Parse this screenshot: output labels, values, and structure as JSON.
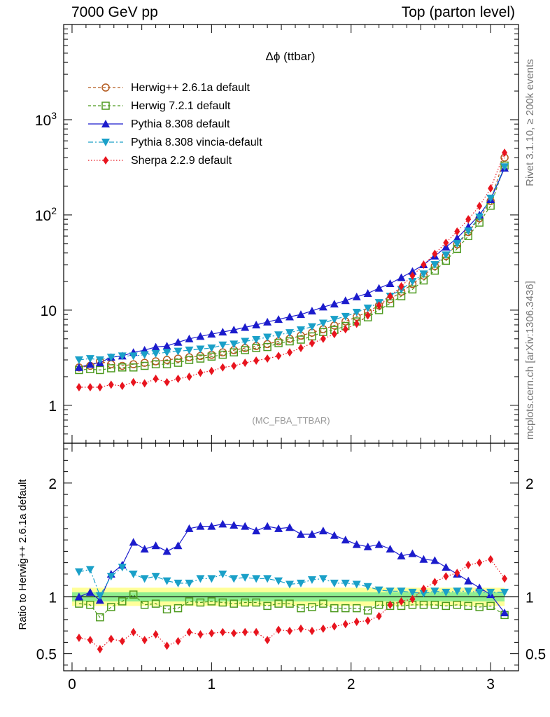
{
  "header": {
    "left": "7000 GeV pp",
    "right": "Top (parton level)"
  },
  "side": {
    "rivet": "Rivet 3.1.10, ≥ 200k events",
    "mcplots": "mcplots.cern.ch [arXiv:1306.3436]"
  },
  "chart_data": [
    {
      "type": "line",
      "title": "Δϕ (ttbar)",
      "annotation": "(MC_FBA_TTBAR)",
      "yscale": "log",
      "xlim": [
        -0.06,
        3.2
      ],
      "ylim": [
        0.4,
        10000
      ],
      "ytick_values": [
        1,
        10,
        100,
        1000
      ],
      "ytick_labels": [
        "1",
        "10",
        "10^2",
        "10^3"
      ],
      "xticks": [
        0,
        1,
        2,
        3
      ],
      "legend_position": "top-left",
      "x": [
        0.05,
        0.13,
        0.2,
        0.28,
        0.36,
        0.44,
        0.52,
        0.6,
        0.68,
        0.76,
        0.84,
        0.92,
        1.0,
        1.08,
        1.16,
        1.24,
        1.32,
        1.4,
        1.48,
        1.56,
        1.64,
        1.72,
        1.8,
        1.88,
        1.96,
        2.04,
        2.12,
        2.2,
        2.28,
        2.36,
        2.44,
        2.52,
        2.6,
        2.68,
        2.76,
        2.84,
        2.92,
        3.0,
        3.1
      ],
      "series": [
        {
          "name": "Herwig++ 2.6.1a default",
          "color": "#b35a1f",
          "marker": "circle-open",
          "line": "dashed",
          "values": [
            2.5,
            2.6,
            2.9,
            2.7,
            2.6,
            2.7,
            2.8,
            2.9,
            3.0,
            3.1,
            3.2,
            3.3,
            3.4,
            3.6,
            3.8,
            4.0,
            4.2,
            4.4,
            4.7,
            5.0,
            5.4,
            5.8,
            6.3,
            6.9,
            7.6,
            8.5,
            9.6,
            11.2,
            13.0,
            15.6,
            18.8,
            23.0,
            29.0,
            37.0,
            49.0,
            66.0,
            92.0,
            140.0,
            400.0
          ]
        },
        {
          "name": "Herwig 7.2.1 default",
          "color": "#4d9a1f",
          "marker": "square-open",
          "line": "dashed",
          "values": [
            2.35,
            2.4,
            2.35,
            2.45,
            2.5,
            2.5,
            2.6,
            2.7,
            2.7,
            2.8,
            3.0,
            3.1,
            3.25,
            3.4,
            3.6,
            3.8,
            4.0,
            4.1,
            4.5,
            4.7,
            4.9,
            5.3,
            5.9,
            6.2,
            6.8,
            7.6,
            8.4,
            10.0,
            11.8,
            14.0,
            16.5,
            20.5,
            26.0,
            33.0,
            44.0,
            60.0,
            83.0,
            125.0,
            330.0
          ]
        },
        {
          "name": "Pythia 8.308 default",
          "color": "#1b1bcc",
          "marker": "triangle-up",
          "line": "solid",
          "values": [
            2.5,
            2.7,
            2.8,
            3.2,
            3.3,
            3.6,
            3.8,
            4.1,
            4.2,
            4.6,
            5.0,
            5.3,
            5.6,
            5.9,
            6.2,
            6.6,
            7.0,
            7.5,
            8.0,
            8.5,
            9.0,
            9.8,
            10.8,
            11.6,
            12.6,
            13.8,
            15.0,
            17.0,
            19.0,
            22.0,
            25.5,
            30.0,
            37.0,
            46.0,
            57.0,
            75.0,
            100.0,
            145.0,
            310.0
          ]
        },
        {
          "name": "Pythia 8.308 vincia-default",
          "color": "#1aa0c8",
          "marker": "triangle-down",
          "line": "dashdot",
          "values": [
            3.0,
            3.1,
            3.0,
            3.2,
            3.3,
            3.3,
            3.4,
            3.5,
            3.6,
            3.7,
            3.8,
            3.9,
            4.0,
            4.3,
            4.4,
            4.7,
            4.9,
            5.2,
            5.5,
            5.8,
            6.2,
            6.7,
            7.3,
            8.0,
            8.6,
            9.5,
            10.5,
            12.0,
            14.0,
            16.5,
            20.0,
            24.0,
            30.0,
            38.0,
            50.0,
            68.0,
            95.0,
            150.0,
            320.0
          ]
        },
        {
          "name": "Sherpa 2.2.9 default",
          "color": "#e8141e",
          "marker": "diamond",
          "line": "dotted",
          "values": [
            1.55,
            1.55,
            1.55,
            1.65,
            1.6,
            1.75,
            1.7,
            1.9,
            1.75,
            1.9,
            2.0,
            2.2,
            2.3,
            2.5,
            2.6,
            2.8,
            2.95,
            3.1,
            3.3,
            3.6,
            4.0,
            4.5,
            5.0,
            5.6,
            6.3,
            7.2,
            8.8,
            11.2,
            14.0,
            17.8,
            23.0,
            30.0,
            39.0,
            51.0,
            67.0,
            90.0,
            124.0,
            190.0,
            450.0
          ]
        }
      ]
    },
    {
      "type": "line",
      "ylabel": "Ratio to Herwig++ 2.6.1a default",
      "xlim": [
        -0.06,
        3.2
      ],
      "ylim": [
        0.35,
        2.35
      ],
      "yticks": [
        0.5,
        1,
        2
      ],
      "ytick_labels": [
        "0.5",
        "1",
        "2"
      ],
      "xticks": [
        0,
        1,
        2,
        3
      ],
      "band_inner": [
        0.96,
        1.04
      ],
      "band_outer": [
        0.92,
        1.08
      ],
      "band_inner_color": "#90ee90",
      "band_outer_color": "#ffff99",
      "x": [
        0.05,
        0.13,
        0.2,
        0.28,
        0.36,
        0.44,
        0.52,
        0.6,
        0.68,
        0.76,
        0.84,
        0.92,
        1.0,
        1.08,
        1.16,
        1.24,
        1.32,
        1.4,
        1.48,
        1.56,
        1.64,
        1.72,
        1.8,
        1.88,
        1.96,
        2.04,
        2.12,
        2.2,
        2.28,
        2.36,
        2.44,
        2.52,
        2.6,
        2.68,
        2.76,
        2.84,
        2.92,
        3.0,
        3.1
      ],
      "series": [
        {
          "name": "Herwig 7.2.1 default",
          "color": "#4d9a1f",
          "marker": "square-open",
          "line": "dashed",
          "values": [
            0.94,
            0.93,
            0.82,
            0.91,
            0.96,
            1.02,
            0.93,
            0.94,
            0.89,
            0.9,
            0.96,
            0.95,
            0.96,
            0.95,
            0.94,
            0.95,
            0.95,
            0.92,
            0.94,
            0.94,
            0.9,
            0.91,
            0.94,
            0.9,
            0.9,
            0.9,
            0.88,
            0.93,
            0.92,
            0.92,
            0.93,
            0.93,
            0.93,
            0.92,
            0.93,
            0.92,
            0.91,
            0.92,
            0.84
          ]
        },
        {
          "name": "Pythia 8.308 default",
          "color": "#1b1bcc",
          "marker": "triangle-up",
          "line": "solid",
          "values": [
            1.0,
            1.04,
            0.97,
            1.2,
            1.28,
            1.48,
            1.42,
            1.45,
            1.4,
            1.45,
            1.6,
            1.62,
            1.62,
            1.64,
            1.63,
            1.62,
            1.58,
            1.62,
            1.6,
            1.61,
            1.55,
            1.55,
            1.58,
            1.54,
            1.5,
            1.46,
            1.44,
            1.46,
            1.42,
            1.36,
            1.38,
            1.33,
            1.32,
            1.26,
            1.2,
            1.14,
            1.08,
            1.02,
            0.86
          ]
        },
        {
          "name": "Pythia 8.308 vincia-default",
          "color": "#1aa0c8",
          "marker": "triangle-down",
          "line": "dashdot",
          "values": [
            1.22,
            1.24,
            1.01,
            1.18,
            1.26,
            1.2,
            1.16,
            1.18,
            1.14,
            1.12,
            1.12,
            1.16,
            1.16,
            1.2,
            1.16,
            1.17,
            1.16,
            1.16,
            1.14,
            1.11,
            1.12,
            1.15,
            1.16,
            1.12,
            1.12,
            1.11,
            1.09,
            1.06,
            1.05,
            1.05,
            1.04,
            1.03,
            1.05,
            1.04,
            1.05,
            1.05,
            1.04,
            1.04,
            1.04
          ]
        },
        {
          "name": "Sherpa 2.2.9 default",
          "color": "#e8141e",
          "marker": "diamond",
          "line": "dotted",
          "values": [
            0.64,
            0.62,
            0.54,
            0.63,
            0.61,
            0.69,
            0.62,
            0.67,
            0.57,
            0.61,
            0.69,
            0.67,
            0.68,
            0.69,
            0.68,
            0.69,
            0.69,
            0.62,
            0.71,
            0.7,
            0.72,
            0.7,
            0.72,
            0.74,
            0.76,
            0.78,
            0.79,
            0.83,
            0.93,
            0.96,
            0.98,
            1.07,
            1.13,
            1.18,
            1.21,
            1.28,
            1.3,
            1.33,
            1.16
          ]
        }
      ]
    }
  ]
}
